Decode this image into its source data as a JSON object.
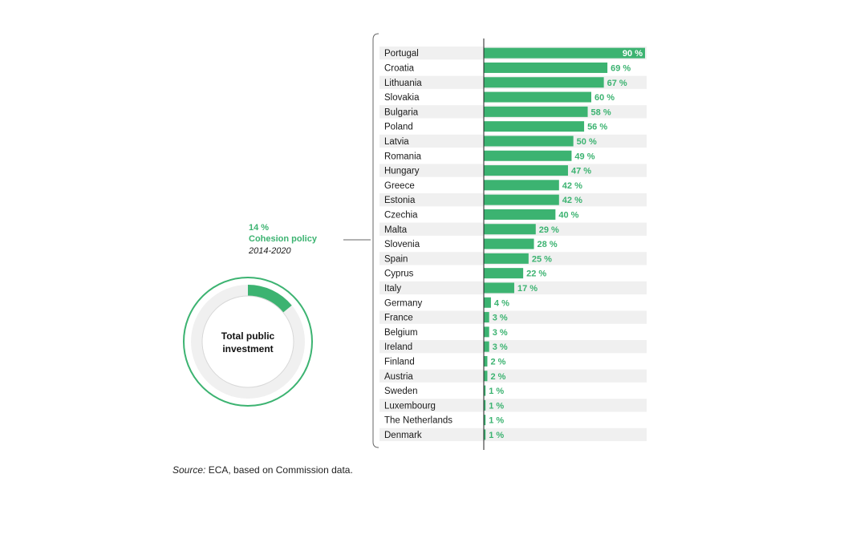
{
  "chart_data": {
    "type": "bar",
    "orientation": "horizontal",
    "unit_suffix": " %",
    "categories": [
      "Portugal",
      "Croatia",
      "Lithuania",
      "Slovakia",
      "Bulgaria",
      "Poland",
      "Latvia",
      "Romania",
      "Hungary",
      "Greece",
      "Estonia",
      "Czechia",
      "Malta",
      "Slovenia",
      "Spain",
      "Cyprus",
      "Italy",
      "Germany",
      "France",
      "Belgium",
      "Ireland",
      "Finland",
      "Austria",
      "Sweden",
      "Luxembourg",
      "The Netherlands",
      "Denmark"
    ],
    "values": [
      90,
      69,
      67,
      60,
      58,
      56,
      50,
      49,
      47,
      42,
      42,
      40,
      29,
      28,
      25,
      22,
      17,
      4,
      3,
      3,
      3,
      2,
      2,
      1,
      1,
      1,
      1
    ],
    "xlim": [
      0,
      90
    ],
    "grid": false,
    "bar_color": "#3cb371",
    "row_stripe_color": "#f0f0f0"
  },
  "donut": {
    "percent_label": "14 %",
    "policy_label": "Cohesion policy",
    "period_label": "2014-2020",
    "share": 14,
    "center_line1": "Total public",
    "center_line2": "investment",
    "accent_color": "#3cb371",
    "ring_color": "#f0f0f0"
  },
  "source": {
    "prefix": "Source:",
    "text": " ECA, based on Commission data."
  }
}
